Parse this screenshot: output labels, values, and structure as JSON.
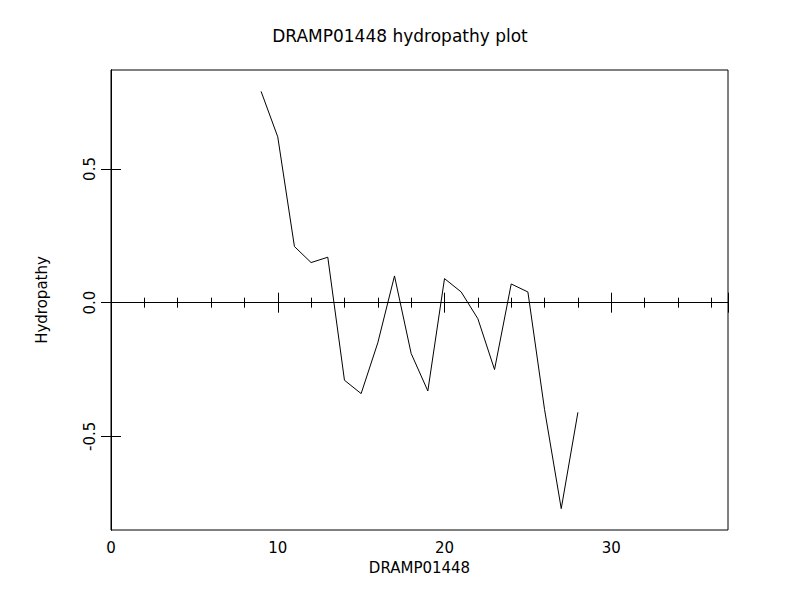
{
  "chart_data": {
    "type": "line",
    "title": "DRAMP01448 hydropathy plot",
    "x_label": "DRAMP01448",
    "y_label": "Hydropathy",
    "x": [
      9,
      10,
      11,
      12,
      13,
      14,
      15,
      16,
      17,
      18,
      19,
      20,
      21,
      22,
      23,
      24,
      25,
      26,
      27,
      28
    ],
    "values": [
      0.79,
      0.62,
      0.21,
      0.15,
      0.17,
      -0.29,
      -0.34,
      -0.15,
      0.1,
      -0.19,
      -0.33,
      0.09,
      0.04,
      -0.06,
      -0.25,
      0.07,
      0.04,
      -0.4,
      -0.77,
      -0.41
    ],
    "color": "#000000",
    "xlim": [
      0,
      37
    ],
    "xticks": [
      0,
      10,
      20,
      30
    ],
    "ylim": [
      -0.85,
      0.87
    ],
    "yticks": [
      {
        "value": -0.5,
        "label": "-0.5"
      },
      {
        "value": 0,
        "label": "0.0"
      },
      {
        "value": 0.5,
        "label": "0.5"
      }
    ],
    "grid": false
  }
}
